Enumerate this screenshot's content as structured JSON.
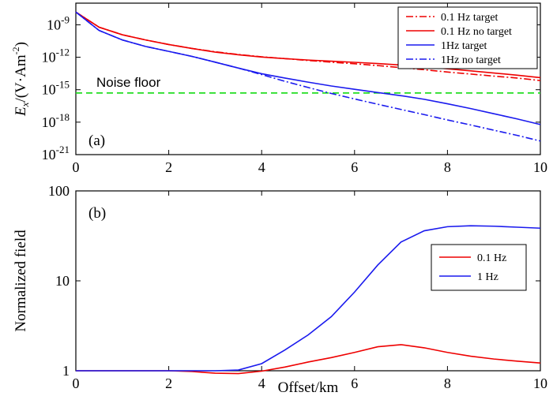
{
  "chart_data": [
    {
      "type": "line",
      "panel_label": "(a)",
      "ylabel_main": "E",
      "ylabel_sub": "x",
      "ylabel_rest": "/(V·Am",
      "ylabel_sup": "-2",
      "ylabel_close": ")",
      "yscale": "log",
      "xlim": [
        0,
        10
      ],
      "ylim": [
        1e-21,
        1e-07
      ],
      "x_ticks": [
        "0",
        "2",
        "4",
        "6",
        "8",
        "10"
      ],
      "y_ticks": [
        {
          "value": 1e-09,
          "base": "10",
          "exp": "-9"
        },
        {
          "value": 1e-12,
          "base": "10",
          "exp": "-12"
        },
        {
          "value": 1e-15,
          "base": "10",
          "exp": "-15"
        },
        {
          "value": 1e-18,
          "base": "10",
          "exp": "-18"
        },
        {
          "value": 1e-21,
          "base": "10",
          "exp": "-21"
        }
      ],
      "noise_floor": {
        "label": "Noise floor",
        "value": 5e-16,
        "color": "#22dd22"
      },
      "legend_position": "top-right",
      "series": [
        {
          "name": "0.1 Hz target",
          "color": "#ee0000",
          "dash": "dashdot",
          "x": [
            0,
            0.5,
            1,
            1.5,
            2,
            2.5,
            3,
            3.5,
            4,
            4.5,
            5,
            5.5,
            6,
            6.5,
            7,
            7.5,
            8,
            8.5,
            9,
            9.5,
            10
          ],
          "y": [
            1.5e-08,
            6e-10,
            1.2e-10,
            4e-11,
            1.5e-11,
            6.5e-12,
            3.2e-12,
            1.8e-12,
            1.1e-12,
            7.5e-13,
            5e-13,
            3.5e-13,
            2.5e-13,
            1.7e-13,
            1.1e-13,
            7e-14,
            4.3e-14,
            2.8e-14,
            1.8e-14,
            1.2e-14,
            7e-15
          ]
        },
        {
          "name": "0.1 Hz no target",
          "color": "#ee0000",
          "dash": "solid",
          "x": [
            0,
            0.5,
            1,
            1.5,
            2,
            2.5,
            3,
            3.5,
            4,
            4.5,
            5,
            5.5,
            6,
            6.5,
            7,
            7.5,
            8,
            8.5,
            9,
            9.5,
            10
          ],
          "y": [
            1.5e-08,
            6e-10,
            1.2e-10,
            4e-11,
            1.5e-11,
            6.5e-12,
            3e-12,
            1.7e-12,
            1.05e-12,
            7.5e-13,
            5.5e-13,
            4.3e-13,
            3.4e-13,
            2.6e-13,
            1.9e-13,
            1.3e-13,
            8.5e-14,
            5.5e-14,
            3.5e-14,
            2.2e-14,
            1.3e-14
          ]
        },
        {
          "name": "1Hz target",
          "color": "#1a1aee",
          "dash": "solid",
          "x": [
            0,
            0.5,
            1,
            1.5,
            2,
            2.5,
            3,
            3.5,
            4,
            4.5,
            5,
            5.5,
            6,
            6.5,
            7,
            7.5,
            8,
            8.5,
            9,
            9.5,
            10
          ],
          "y": [
            1.5e-08,
            3e-10,
            4e-11,
            1e-11,
            3.5e-12,
            1.2e-12,
            3.5e-13,
            1e-13,
            3e-14,
            1.2e-14,
            5e-15,
            2.2e-15,
            1.1e-15,
            5.5e-16,
            2.8e-16,
            1.3e-16,
            5e-17,
            1.8e-17,
            6e-18,
            2e-18,
            6e-19
          ]
        },
        {
          "name": "1Hz no target",
          "color": "#1a1aee",
          "dash": "dashdot",
          "x": [
            0,
            0.5,
            1,
            1.5,
            2,
            2.5,
            3,
            3.5,
            4,
            4.5,
            5,
            5.5,
            6,
            6.5,
            7,
            7.5,
            8,
            8.5,
            9,
            9.5,
            10
          ],
          "y": [
            1.5e-08,
            3e-10,
            4e-11,
            1e-11,
            3.5e-12,
            1.2e-12,
            3.5e-13,
            1e-13,
            2.5e-14,
            6e-15,
            1.6e-15,
            4.5e-16,
            1.4e-16,
            4.5e-17,
            1.5e-17,
            5e-18,
            1.6e-18,
            5.5e-19,
            1.8e-19,
            6e-20,
            1.8e-20
          ]
        }
      ]
    },
    {
      "type": "line",
      "panel_label": "(b)",
      "xlabel": "Offset/km",
      "ylabel": "Normalized field",
      "yscale": "log",
      "xlim": [
        0,
        10
      ],
      "ylim": [
        1,
        100
      ],
      "x_ticks": [
        "0",
        "2",
        "4",
        "6",
        "8",
        "10"
      ],
      "y_ticks": [
        {
          "value": 1,
          "label": "1"
        },
        {
          "value": 10,
          "label": "10"
        },
        {
          "value": 100,
          "label": "100"
        }
      ],
      "legend_position": "center-right",
      "series": [
        {
          "name": "0.1 Hz",
          "color": "#ee0000",
          "x": [
            0,
            0.5,
            1,
            1.5,
            2,
            2.5,
            3,
            3.5,
            4,
            4.5,
            5,
            5.5,
            6,
            6.5,
            7,
            7.5,
            8,
            8.5,
            9,
            9.5,
            10
          ],
          "y": [
            1,
            1,
            1,
            1,
            1,
            0.98,
            0.94,
            0.93,
            0.99,
            1.1,
            1.25,
            1.4,
            1.6,
            1.85,
            1.95,
            1.8,
            1.6,
            1.45,
            1.35,
            1.28,
            1.22
          ]
        },
        {
          "name": "1 Hz",
          "color": "#1a1aee",
          "x": [
            0,
            0.5,
            1,
            1.5,
            2,
            2.5,
            3,
            3.5,
            4,
            4.5,
            5,
            5.5,
            6,
            6.5,
            7,
            7.5,
            8,
            8.5,
            9,
            9.5,
            10
          ],
          "y": [
            1,
            1,
            1,
            1,
            1,
            1,
            1,
            1.02,
            1.2,
            1.7,
            2.5,
            4,
            7.5,
            15,
            27,
            36,
            40,
            41,
            40.5,
            39.5,
            38.5
          ]
        }
      ]
    }
  ]
}
